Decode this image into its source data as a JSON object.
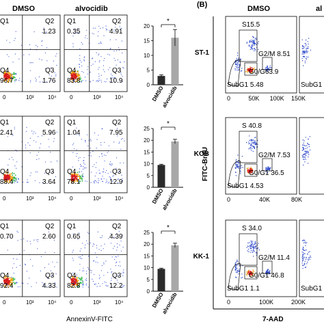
{
  "panel_b_label": "(B)",
  "annexin": {
    "col_labels": [
      "DMSO",
      "alvocidib"
    ],
    "xlabel": "AnnexinV-FITC",
    "tick_labels": [
      "0",
      "10³",
      "10⁴"
    ],
    "quadrant_names": [
      "Q1",
      "Q2",
      "Q3",
      "Q4"
    ],
    "rows": [
      {
        "dmso": {
          "Q1": "",
          "Q2": "1.23",
          "Q3": "1.76",
          "Q4": "96.7"
        },
        "alvocidib": {
          "Q1": "0.35",
          "Q2": "4.91",
          "Q3": "10.9",
          "Q4": "83.8"
        }
      },
      {
        "dmso": {
          "Q1": "2.41",
          "Q2": "5.96",
          "Q3": "3.64",
          "Q4": "88.4"
        },
        "alvocidib": {
          "Q1": "1.04",
          "Q2": "7.95",
          "Q3": "12.9",
          "Q4": "78.1"
        }
      },
      {
        "dmso": {
          "Q1": "0.70",
          "Q2": "2.60",
          "Q3": "4.33",
          "Q4": "92.4"
        },
        "alvocidib": {
          "Q1": "0.65",
          "Q2": "4.39",
          "Q3": "12.2",
          "Q4": "82.8"
        }
      }
    ]
  },
  "cellcycle": {
    "col_labels": [
      "DMSO",
      "al"
    ],
    "ylabel": "FITC-BrdU",
    "xlabel": "7-AAD",
    "rows": [
      {
        "label": "ST-1",
        "x_ticks": [
          "0",
          "50K",
          "100K",
          "150K"
        ],
        "S": "S15.5",
        "G2M": "G2/M 8.51",
        "G0G1": "G0/G63.9",
        "SubG1": "SubG1 5.48",
        "right_partial": "SubG1"
      },
      {
        "label": "KOB",
        "x_ticks": [
          "0",
          "40K",
          "80K"
        ],
        "S": "S 40.8",
        "G2M": "G2/M 7.53",
        "G0G1": "G0/G1 36.5",
        "SubG1": "SubG1 4.53",
        "right_partial": ""
      },
      {
        "label": "KK-1",
        "x_ticks": [
          "0",
          "100K",
          "200K"
        ],
        "S": "S 34.0",
        "G2M": "G2/M 11.4",
        "G0G1": "G0/G1 46.8",
        "SubG1": "SubG1 1.1",
        "right_partial": "SubG1"
      }
    ]
  },
  "chart_data": [
    {
      "type": "bar",
      "categories": [
        "DMSO",
        "alvocidib"
      ],
      "values": [
        3,
        16
      ],
      "errors": [
        0.4,
        2.8
      ],
      "ylim": [
        0,
        20
      ],
      "yticks": [
        "0",
        "5",
        "10",
        "15",
        "20"
      ],
      "significance": "*",
      "colors": [
        "#2b2b2b",
        "#a8a8a8"
      ]
    },
    {
      "type": "bar",
      "categories": [
        "DMSO",
        "alvocidib"
      ],
      "values": [
        9.5,
        19.5
      ],
      "errors": [
        0.3,
        0.9
      ],
      "ylim": [
        0,
        25
      ],
      "yticks": [
        "0",
        "5",
        "10",
        "15",
        "20",
        "25"
      ],
      "significance": "*",
      "colors": [
        "#2b2b2b",
        "#a8a8a8"
      ]
    },
    {
      "type": "bar",
      "categories": [
        "DMSO",
        "alvocidib"
      ],
      "values": [
        9.5,
        19.5
      ],
      "errors": [
        0.3,
        0.9
      ],
      "ylim": [
        0,
        25
      ],
      "yticks": [
        "0",
        "5",
        "10",
        "15",
        "20",
        "25"
      ],
      "significance": "*",
      "colors": [
        "#2b2b2b",
        "#a8a8a8"
      ]
    }
  ]
}
